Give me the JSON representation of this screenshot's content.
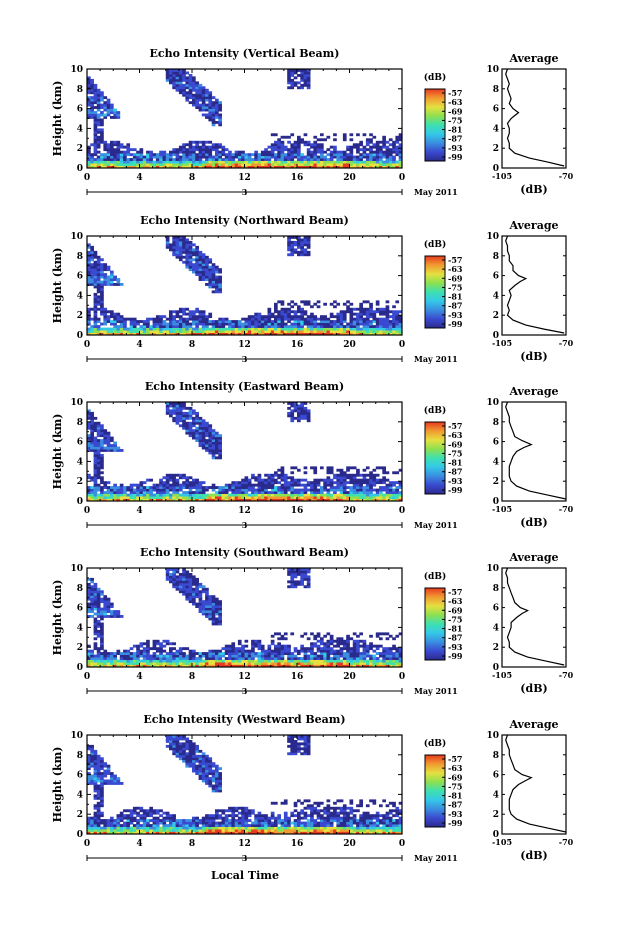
{
  "colors": {
    "colormap": [
      "#2a2a8c",
      "#3a4ad0",
      "#3a8ee0",
      "#34c8e8",
      "#3ee0b0",
      "#8ee050",
      "#e6e040",
      "#f09a30",
      "#e83a20"
    ]
  },
  "figure": {
    "date_label": "May 2011",
    "day_label": "3",
    "xlabel": "Local Time",
    "ylabel": "Height (km)",
    "avg_title": "Average",
    "avg_xlabel": "(dB)",
    "cbar_label": "(dB)"
  },
  "chart_data": [
    {
      "type": "heatmap",
      "title": "Echo Intensity (Vertical Beam)",
      "xlim": [
        0,
        24
      ],
      "xticks": [
        "0",
        "4",
        "8",
        "12",
        "16",
        "20",
        "0"
      ],
      "ylim": [
        0,
        10
      ],
      "yticks": [
        "0",
        "2",
        "4",
        "6",
        "8",
        "10"
      ],
      "colorbar": {
        "ticks": [
          "-57",
          "-63",
          "-69",
          "-75",
          "-81",
          "-87",
          "-93",
          "-99"
        ]
      },
      "average": {
        "xlim": [
          -105,
          -70
        ],
        "xticks": [
          "-105",
          "-70"
        ],
        "yticks": [
          "0",
          "2",
          "4",
          "6",
          "8",
          "10"
        ],
        "profile": [
          [
            -71,
            0.2
          ],
          [
            -80,
            0.6
          ],
          [
            -90,
            1.0
          ],
          [
            -98,
            1.5
          ],
          [
            -101,
            2.0
          ],
          [
            -101,
            2.5
          ],
          [
            -102,
            3.0
          ],
          [
            -101,
            3.5
          ],
          [
            -101,
            4.0
          ],
          [
            -102,
            4.5
          ],
          [
            -100,
            5.0
          ],
          [
            -98,
            5.3
          ],
          [
            -96,
            5.6
          ],
          [
            -99,
            6.0
          ],
          [
            -101,
            6.5
          ],
          [
            -100,
            7.0
          ],
          [
            -101,
            7.5
          ],
          [
            -102,
            8.0
          ],
          [
            -101,
            8.5
          ],
          [
            -102,
            9.0
          ],
          [
            -103,
            9.5
          ],
          [
            -102,
            10.0
          ]
        ]
      }
    },
    {
      "type": "heatmap",
      "title": "Echo Intensity (Northward Beam)",
      "xlim": [
        0,
        24
      ],
      "xticks": [
        "0",
        "4",
        "8",
        "12",
        "16",
        "20",
        "0"
      ],
      "ylim": [
        0,
        10
      ],
      "yticks": [
        "0",
        "2",
        "4",
        "6",
        "8",
        "10"
      ],
      "colorbar": {
        "ticks": [
          "-57",
          "-63",
          "-69",
          "-75",
          "-81",
          "-87",
          "-93",
          "-99"
        ]
      },
      "average": {
        "xlim": [
          -105,
          -70
        ],
        "xticks": [
          "-105",
          "-70"
        ],
        "yticks": [
          "0",
          "2",
          "4",
          "6",
          "8",
          "10"
        ],
        "profile": [
          [
            -71,
            0.2
          ],
          [
            -82,
            0.6
          ],
          [
            -92,
            1.0
          ],
          [
            -99,
            1.5
          ],
          [
            -102,
            2.0
          ],
          [
            -101,
            2.5
          ],
          [
            -102,
            3.0
          ],
          [
            -101,
            3.5
          ],
          [
            -100,
            4.0
          ],
          [
            -101,
            4.5
          ],
          [
            -98,
            5.0
          ],
          [
            -95,
            5.4
          ],
          [
            -92,
            5.7
          ],
          [
            -96,
            6.0
          ],
          [
            -99,
            6.5
          ],
          [
            -99,
            7.0
          ],
          [
            -101,
            7.5
          ],
          [
            -101,
            8.0
          ],
          [
            -102,
            8.5
          ],
          [
            -102,
            9.0
          ],
          [
            -103,
            9.5
          ],
          [
            -102,
            10.0
          ]
        ]
      }
    },
    {
      "type": "heatmap",
      "title": "Echo Intensity (Eastward Beam)",
      "xlim": [
        0,
        24
      ],
      "xticks": [
        "0",
        "4",
        "8",
        "12",
        "16",
        "20",
        "0"
      ],
      "ylim": [
        0,
        10
      ],
      "yticks": [
        "0",
        "2",
        "4",
        "6",
        "8",
        "10"
      ],
      "colorbar": {
        "ticks": [
          "-57",
          "-63",
          "-69",
          "-75",
          "-81",
          "-87",
          "-93",
          "-99"
        ]
      },
      "average": {
        "xlim": [
          -105,
          -70
        ],
        "xticks": [
          "-105",
          "-70"
        ],
        "yticks": [
          "0",
          "2",
          "4",
          "6",
          "8",
          "10"
        ],
        "profile": [
          [
            -70,
            0.2
          ],
          [
            -80,
            0.6
          ],
          [
            -90,
            1.0
          ],
          [
            -97,
            1.5
          ],
          [
            -100,
            2.0
          ],
          [
            -101,
            2.5
          ],
          [
            -101,
            3.0
          ],
          [
            -101,
            3.5
          ],
          [
            -100,
            4.0
          ],
          [
            -99,
            4.5
          ],
          [
            -97,
            5.0
          ],
          [
            -93,
            5.4
          ],
          [
            -89,
            5.7
          ],
          [
            -94,
            6.1
          ],
          [
            -98,
            6.5
          ],
          [
            -99,
            7.0
          ],
          [
            -100,
            7.5
          ],
          [
            -101,
            8.0
          ],
          [
            -101,
            8.5
          ],
          [
            -102,
            9.0
          ],
          [
            -103,
            9.5
          ],
          [
            -102,
            10.0
          ]
        ]
      }
    },
    {
      "type": "heatmap",
      "title": "Echo Intensity (Southward Beam)",
      "xlim": [
        0,
        24
      ],
      "xticks": [
        "0",
        "4",
        "8",
        "12",
        "16",
        "20",
        "0"
      ],
      "ylim": [
        0,
        10
      ],
      "yticks": [
        "0",
        "2",
        "4",
        "6",
        "8",
        "10"
      ],
      "colorbar": {
        "ticks": [
          "-57",
          "-63",
          "-69",
          "-75",
          "-81",
          "-87",
          "-93",
          "-99"
        ]
      },
      "average": {
        "xlim": [
          -105,
          -70
        ],
        "xticks": [
          "-105",
          "-70"
        ],
        "yticks": [
          "0",
          "2",
          "4",
          "6",
          "8",
          "10"
        ],
        "profile": [
          [
            -71,
            0.2
          ],
          [
            -81,
            0.6
          ],
          [
            -91,
            1.0
          ],
          [
            -98,
            1.5
          ],
          [
            -101,
            2.0
          ],
          [
            -101,
            2.5
          ],
          [
            -102,
            3.0
          ],
          [
            -101,
            3.5
          ],
          [
            -100,
            4.0
          ],
          [
            -100,
            4.5
          ],
          [
            -97,
            5.0
          ],
          [
            -94,
            5.4
          ],
          [
            -91,
            5.7
          ],
          [
            -95,
            6.0
          ],
          [
            -98,
            6.5
          ],
          [
            -99,
            7.0
          ],
          [
            -100,
            7.5
          ],
          [
            -101,
            8.0
          ],
          [
            -102,
            8.5
          ],
          [
            -102,
            9.0
          ],
          [
            -103,
            9.5
          ],
          [
            -102,
            10.0
          ]
        ]
      }
    },
    {
      "type": "heatmap",
      "title": "Echo Intensity (Westward Beam)",
      "xlim": [
        0,
        24
      ],
      "xticks": [
        "0",
        "4",
        "8",
        "12",
        "16",
        "20",
        "0"
      ],
      "ylim": [
        0,
        10
      ],
      "yticks": [
        "0",
        "2",
        "4",
        "6",
        "8",
        "10"
      ],
      "colorbar": {
        "ticks": [
          "-57",
          "-63",
          "-69",
          "-75",
          "-81",
          "-87",
          "-93",
          "-99"
        ]
      },
      "average": {
        "xlim": [
          -105,
          -70
        ],
        "xticks": [
          "-105",
          "-70"
        ],
        "yticks": [
          "0",
          "2",
          "4",
          "6",
          "8",
          "10"
        ],
        "profile": [
          [
            -70,
            0.2
          ],
          [
            -80,
            0.6
          ],
          [
            -90,
            1.0
          ],
          [
            -97,
            1.5
          ],
          [
            -100,
            2.0
          ],
          [
            -101,
            2.5
          ],
          [
            -101,
            3.0
          ],
          [
            -101,
            3.5
          ],
          [
            -100,
            4.0
          ],
          [
            -99,
            4.5
          ],
          [
            -96,
            5.0
          ],
          [
            -92,
            5.4
          ],
          [
            -89,
            5.7
          ],
          [
            -94,
            6.0
          ],
          [
            -98,
            6.5
          ],
          [
            -99,
            7.0
          ],
          [
            -100,
            7.5
          ],
          [
            -101,
            8.0
          ],
          [
            -101,
            8.5
          ],
          [
            -102,
            9.0
          ],
          [
            -103,
            9.5
          ],
          [
            -102,
            10.0
          ]
        ]
      }
    }
  ]
}
